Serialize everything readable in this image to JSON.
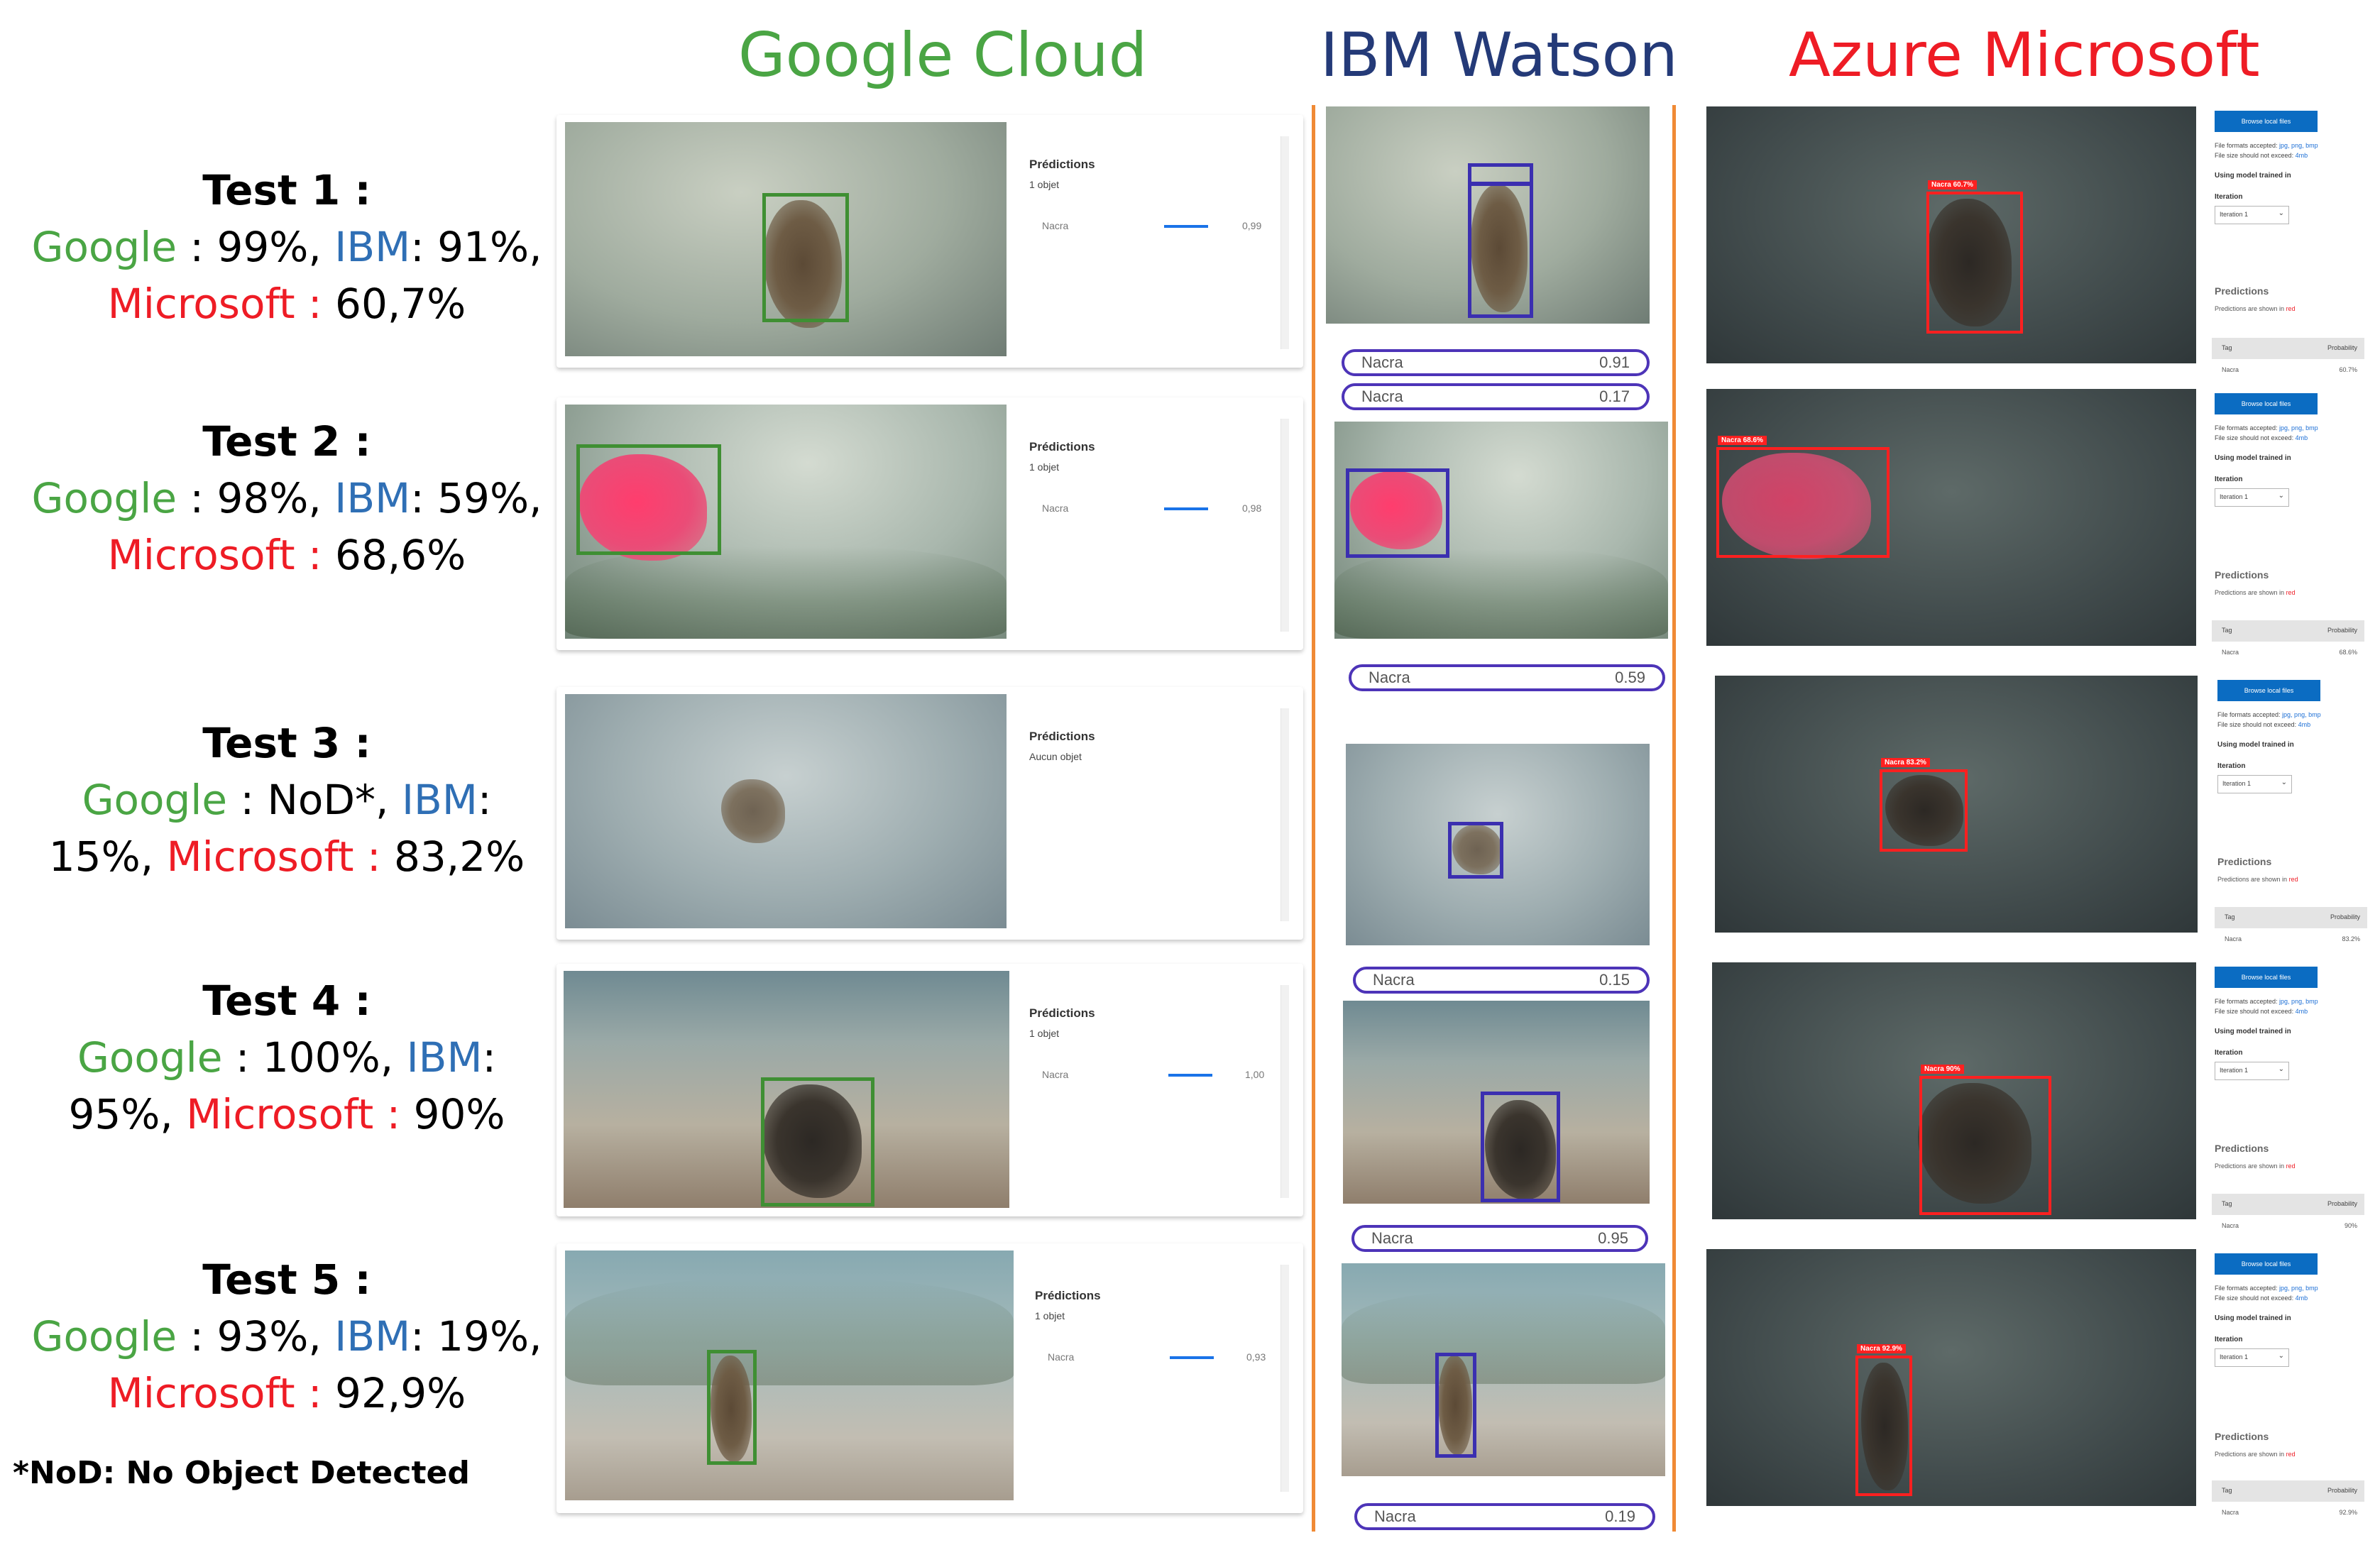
{
  "columns": {
    "google": "Google Cloud",
    "ibm": "IBM Watson",
    "azure": "Azure Microsoft"
  },
  "colors": {
    "google": "#4aa544",
    "ibm": "#2f6fb5",
    "microsoft": "#ee1c25",
    "divider": "#f08a35",
    "ibm_box": "#3b2fb0",
    "google_box": "#3f8f33",
    "azure_box": "#ff2020"
  },
  "tests": [
    {
      "title": "Test 1 :",
      "google_label": "Google",
      "google_text": " : 99%, ",
      "ibm_label": "IBM",
      "ibm_text": ": 91%,",
      "ms_label": "Microsoft :",
      "ms_text": " 60,7%"
    },
    {
      "title": "Test 2 :",
      "google_label": "Google",
      "google_text": " : 98%, ",
      "ibm_label": "IBM",
      "ibm_text": ": 59%,",
      "ms_label": "Microsoft :",
      "ms_text": " 68,6%"
    },
    {
      "title": "Test 3 :",
      "google_label": "Google",
      "google_text": " : NoD*, ",
      "ibm_label": "IBM",
      "ibm_text": ":",
      "ms_prefix": "15%, ",
      "ms_label": "Microsoft :",
      "ms_text": " 83,2%"
    },
    {
      "title": "Test 4 :",
      "google_label": "Google",
      "google_text": " : 100%, ",
      "ibm_label": "IBM",
      "ibm_text": ":",
      "ms_prefix": "95%, ",
      "ms_label": "Microsoft :",
      "ms_text": " 90%"
    },
    {
      "title": "Test 5 :",
      "google_label": "Google",
      "google_text": " : 93%, ",
      "ibm_label": "IBM",
      "ibm_text": ": 19%,",
      "ms_label": "Microsoft :",
      "ms_text": " 92,9%"
    }
  ],
  "footnote": "*NoD: No Object Detected",
  "google_panels": [
    {
      "heading": "Prédictions",
      "count": "1 objet",
      "label": "Nacra",
      "value": "0,99"
    },
    {
      "heading": "Prédictions",
      "count": "1 objet",
      "label": "Nacra",
      "value": "0,98"
    },
    {
      "heading": "Prédictions",
      "count": "Aucun objet"
    },
    {
      "heading": "Prédictions",
      "count": "1 objet",
      "label": "Nacra",
      "value": "1,00"
    },
    {
      "heading": "Prédictions",
      "count": "1 objet",
      "label": "Nacra",
      "value": "0,93"
    }
  ],
  "ibm_pills": [
    {
      "label": "Nacra",
      "value": "0.91"
    },
    {
      "label": "Nacra",
      "value": "0.17"
    },
    {
      "label": "Nacra",
      "value": "0.59"
    },
    {
      "label": "Nacra",
      "value": "0.15"
    },
    {
      "label": "Nacra",
      "value": "0.95"
    },
    {
      "label": "Nacra",
      "value": "0.19"
    }
  ],
  "azure_panels": [
    {
      "tag": "Nacra 60.7%",
      "prob": "60.7%"
    },
    {
      "tag": "Nacra 68.6%",
      "prob": "68.6%"
    },
    {
      "tag": "Nacra 83.2%",
      "prob": "83.2%"
    },
    {
      "tag": "Nacra 90%",
      "prob": "90%"
    },
    {
      "tag": "Nacra 92.9%",
      "prob": "92.9%"
    }
  ],
  "azure_sidebar": {
    "browse": "Browse local files",
    "formats_prefix": "File formats accepted: ",
    "formats": "jpg, png, bmp",
    "size_prefix": "File size should not exceed: ",
    "size": "4mb",
    "model": "Using model trained in",
    "iteration_label": "Iteration",
    "iteration_value": "Iteration 1",
    "predictions": "Predictions",
    "shown_prefix": "Predictions are shown in ",
    "shown_color": "red",
    "col_tag": "Tag",
    "col_prob": "Probability",
    "row_tag": "Nacra"
  }
}
